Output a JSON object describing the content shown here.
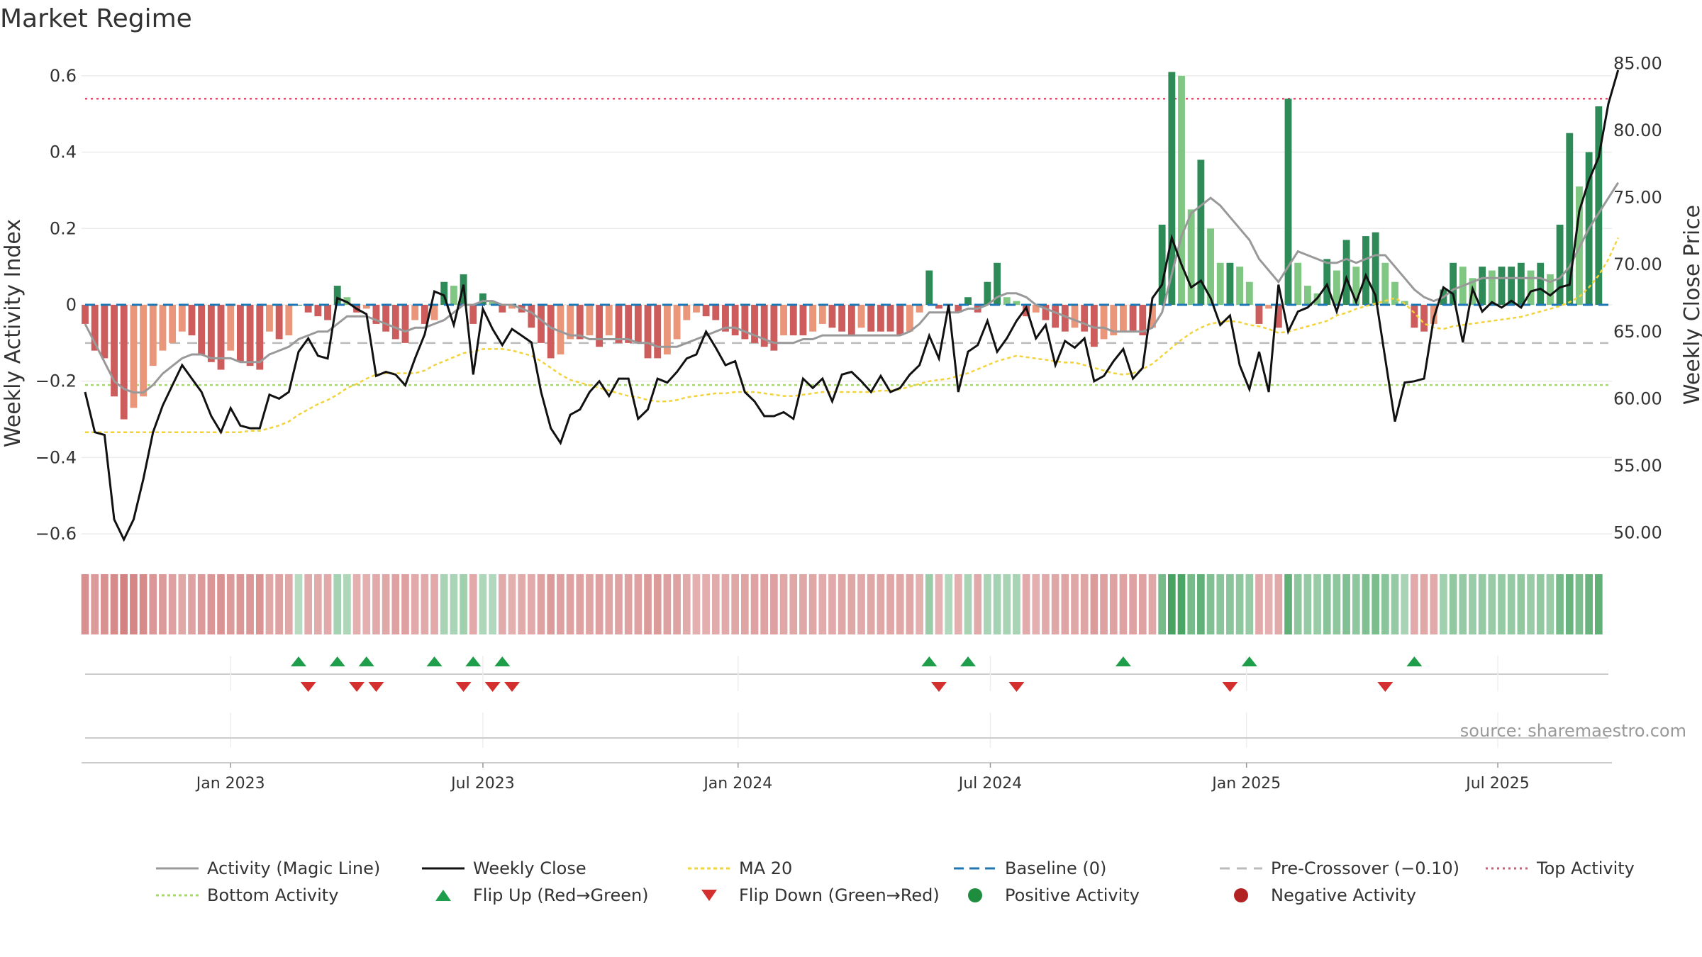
{
  "colors": {
    "pos_dark": "#2e8b57",
    "pos_light": "#81c784",
    "neg_dark": "#cd5c5c",
    "neg_light": "#e9967a",
    "magic": "#999999",
    "close": "#111111",
    "ma20": "#f2d33c",
    "baseline": "#1f77b4",
    "precross": "#bbbbbb",
    "top": "#e05070",
    "bottom": "#a6d96a",
    "flip_up": "#1e9e4a",
    "flip_down": "#d32f2f",
    "positive": "#1e8e3e",
    "negative": "#b22222"
  },
  "chart_data": {
    "type": "bar",
    "title": "Market Regime",
    "ylabel_left": "Weekly Activity Index",
    "ylabel_right": "Weekly Close Price",
    "ylim_left": [
      -0.65,
      0.65
    ],
    "ylim_right": [
      48.5,
      85.5
    ],
    "yticks_left": [
      "−0.6",
      "−0.4",
      "−0.2",
      "0",
      "0.2",
      "0.4",
      "0.6"
    ],
    "yticks_right": [
      "50.00",
      "55.00",
      "60.00",
      "65.00",
      "70.00",
      "75.00",
      "80.00",
      "85.00"
    ],
    "yticks_right_values": [
      50,
      55,
      60,
      65,
      70,
      75,
      80,
      85
    ],
    "x_start_week": 0,
    "x_end_week": 157,
    "xticks": [
      {
        "label": "Jan 2023",
        "week": 15
      },
      {
        "label": "Jul 2023",
        "week": 41
      },
      {
        "label": "Jan 2024",
        "week": 67.3
      },
      {
        "label": "Jul 2024",
        "week": 93.3
      },
      {
        "label": "Jan 2025",
        "week": 119.7
      },
      {
        "label": "Jul 2025",
        "week": 145.6
      }
    ],
    "top_activity": 0.54,
    "bottom_activity": -0.21,
    "pre_crossover": -0.1,
    "baseline": 0,
    "activity": [
      -0.05,
      -0.12,
      -0.14,
      -0.24,
      -0.3,
      -0.27,
      -0.24,
      -0.16,
      -0.12,
      -0.1,
      -0.07,
      -0.08,
      -0.13,
      -0.15,
      -0.17,
      -0.12,
      -0.15,
      -0.16,
      -0.17,
      -0.07,
      -0.09,
      -0.08,
      0,
      -0.02,
      -0.03,
      -0.04,
      0.05,
      0.02,
      -0.02,
      -0.01,
      -0.05,
      -0.07,
      -0.09,
      -0.1,
      -0.04,
      -0.05,
      -0.04,
      0.06,
      0.05,
      0.08,
      -0.05,
      0.03,
      0.01,
      -0.02,
      -0.01,
      -0.02,
      -0.06,
      -0.1,
      -0.14,
      -0.13,
      -0.09,
      -0.09,
      -0.08,
      -0.11,
      -0.08,
      -0.1,
      -0.1,
      -0.1,
      -0.14,
      -0.14,
      -0.13,
      -0.09,
      -0.04,
      -0.02,
      -0.03,
      -0.04,
      -0.07,
      -0.08,
      -0.09,
      -0.1,
      -0.11,
      -0.12,
      -0.08,
      -0.08,
      -0.08,
      -0.07,
      -0.05,
      -0.06,
      -0.07,
      -0.08,
      -0.06,
      -0.07,
      -0.07,
      -0.07,
      -0.08,
      -0.07,
      -0.02,
      0.09,
      -0.01,
      0,
      -0.02,
      0.02,
      -0.02,
      0.06,
      0.11,
      0.02,
      0.01,
      -0.03,
      -0.02,
      -0.04,
      -0.06,
      -0.07,
      -0.06,
      -0.07,
      -0.11,
      -0.09,
      -0.08,
      -0.07,
      -0.07,
      -0.08,
      -0.06,
      0.21,
      0.61,
      0.6,
      0.25,
      0.38,
      0.2,
      0.11,
      0.11,
      0.1,
      0.06,
      -0.05,
      -0.01,
      -0.06,
      0.54,
      0.11,
      0.05,
      0.03,
      0.12,
      0.09,
      0.17,
      0.1,
      0.18,
      0.19,
      0.11,
      0.06,
      0.01,
      -0.06,
      -0.07,
      -0.05,
      0.04,
      0.11,
      0.1,
      0.07,
      0.1,
      0.09,
      0.1,
      0.1,
      0.11,
      0.09,
      0.11,
      0.08,
      0.21,
      0.45,
      0.31,
      0.4,
      0.52
    ],
    "magic_line": [
      -0.05,
      -0.1,
      -0.15,
      -0.2,
      -0.22,
      -0.23,
      -0.23,
      -0.21,
      -0.18,
      -0.16,
      -0.14,
      -0.13,
      -0.13,
      -0.14,
      -0.14,
      -0.14,
      -0.15,
      -0.15,
      -0.15,
      -0.13,
      -0.12,
      -0.11,
      -0.09,
      -0.08,
      -0.07,
      -0.07,
      -0.05,
      -0.03,
      -0.03,
      -0.03,
      -0.04,
      -0.05,
      -0.06,
      -0.07,
      -0.06,
      -0.06,
      -0.05,
      -0.04,
      -0.02,
      0,
      0,
      0.01,
      0.01,
      0,
      0,
      -0.01,
      -0.02,
      -0.04,
      -0.06,
      -0.07,
      -0.08,
      -0.08,
      -0.09,
      -0.09,
      -0.09,
      -0.09,
      -0.09,
      -0.1,
      -0.1,
      -0.11,
      -0.11,
      -0.11,
      -0.1,
      -0.09,
      -0.08,
      -0.07,
      -0.06,
      -0.06,
      -0.07,
      -0.08,
      -0.09,
      -0.1,
      -0.1,
      -0.1,
      -0.09,
      -0.09,
      -0.08,
      -0.08,
      -0.08,
      -0.08,
      -0.08,
      -0.08,
      -0.08,
      -0.08,
      -0.08,
      -0.07,
      -0.05,
      -0.02,
      -0.02,
      -0.02,
      -0.02,
      -0.01,
      -0.01,
      0,
      0.02,
      0.03,
      0.03,
      0.02,
      0,
      -0.01,
      -0.02,
      -0.03,
      -0.04,
      -0.05,
      -0.06,
      -0.06,
      -0.07,
      -0.07,
      -0.07,
      -0.07,
      -0.06,
      -0.02,
      0.08,
      0.18,
      0.24,
      0.26,
      0.28,
      0.26,
      0.23,
      0.2,
      0.17,
      0.12,
      0.09,
      0.06,
      0.1,
      0.14,
      0.13,
      0.12,
      0.11,
      0.11,
      0.12,
      0.11,
      0.12,
      0.13,
      0.13,
      0.1,
      0.07,
      0.04,
      0.02,
      0.01,
      0.02,
      0.04,
      0.05,
      0.06,
      0.07,
      0.07,
      0.07,
      0.07,
      0.07,
      0.07,
      0.07,
      0.06,
      0.07,
      0.1,
      0.15,
      0.2,
      0.24,
      0.28,
      0.32
    ],
    "weekly_close": [
      60.5,
      57.5,
      57.3,
      51,
      49.5,
      51,
      54,
      57.5,
      59.5,
      61,
      62.5,
      61.5,
      60.5,
      58.7,
      57.5,
      59.3,
      58,
      57.8,
      57.8,
      60.3,
      60,
      60.5,
      63.5,
      64.5,
      63.2,
      63,
      67.5,
      67.2,
      66.7,
      66.3,
      61.7,
      62,
      61.8,
      61,
      63,
      64.8,
      68,
      67.7,
      65.5,
      68.5,
      61.8,
      66.7,
      65.2,
      64,
      65.2,
      64.7,
      64.2,
      60.5,
      57.8,
      56.7,
      58.8,
      59.2,
      60.5,
      61.3,
      60.2,
      61.5,
      61.5,
      58.5,
      59.2,
      61.5,
      61.2,
      62,
      63,
      63.3,
      65,
      63.8,
      62.5,
      62.8,
      60.5,
      59.8,
      58.7,
      58.7,
      59,
      58.5,
      61.5,
      60.8,
      61.5,
      59.8,
      61.8,
      62,
      61.3,
      60.5,
      61.7,
      60.5,
      60.8,
      61.8,
      62.5,
      64.7,
      63,
      67,
      60.5,
      63.5,
      64,
      65.8,
      63.5,
      64.5,
      65.8,
      66.8,
      64.5,
      65.5,
      62.5,
      64.3,
      63.8,
      64.5,
      61.3,
      61.7,
      62.8,
      63.7,
      61.5,
      62.3,
      67.5,
      68.5,
      72,
      70,
      68.3,
      68.8,
      67.5,
      65.5,
      66.2,
      62.5,
      60.7,
      63.5,
      60.5,
      68.5,
      65,
      66.5,
      66.8,
      67.5,
      68.5,
      66.5,
      69,
      67.2,
      69.2,
      67.7,
      63,
      58.3,
      61.2,
      61.3,
      61.5,
      66,
      68.3,
      67.8,
      64.2,
      68.2,
      66.5,
      67.2,
      66.8,
      67.3,
      66.8,
      68,
      68.2,
      67.7,
      68.3,
      68.5,
      74,
      76.3,
      78,
      82,
      84.5
    ],
    "ma20": [
      57.5,
      57.5,
      57.5,
      57.5,
      57.5,
      57.5,
      57.5,
      57.5,
      57.5,
      57.5,
      57.5,
      57.5,
      57.5,
      57.5,
      57.5,
      57.5,
      57.5,
      57.6,
      57.6,
      57.8,
      58,
      58.3,
      58.8,
      59.2,
      59.6,
      59.9,
      60.3,
      60.8,
      61.1,
      61.5,
      61.8,
      61.9,
      61.9,
      61.9,
      61.9,
      62.1,
      62.5,
      62.8,
      63.1,
      63.4,
      63.5,
      63.7,
      63.7,
      63.7,
      63.6,
      63.4,
      63.2,
      62.8,
      62.3,
      61.8,
      61.4,
      61.2,
      61,
      60.8,
      60.6,
      60.4,
      60.2,
      60.1,
      59.9,
      59.8,
      59.8,
      59.9,
      60.1,
      60.2,
      60.3,
      60.4,
      60.4,
      60.5,
      60.5,
      60.5,
      60.4,
      60.3,
      60.2,
      60.2,
      60.3,
      60.4,
      60.5,
      60.5,
      60.5,
      60.5,
      60.5,
      60.5,
      60.6,
      60.6,
      60.7,
      60.9,
      61.1,
      61.3,
      61.4,
      61.5,
      61.7,
      61.9,
      62.2,
      62.5,
      62.8,
      63,
      63.2,
      63.1,
      63,
      62.9,
      62.8,
      62.7,
      62.7,
      62.5,
      62.3,
      62.1,
      61.9,
      61.8,
      61.9,
      62.2,
      62.6,
      63.2,
      63.8,
      64.4,
      64.9,
      65.3,
      65.6,
      65.7,
      65.8,
      65.7,
      65.5,
      65.4,
      65.2,
      64.9,
      65,
      65.2,
      65.4,
      65.6,
      65.8,
      66.2,
      66.4,
      66.7,
      66.9,
      67.1,
      67.3,
      67.5,
      67.1,
      66.4,
      65.6,
      65.3,
      65.2,
      65.4,
      65.5,
      65.6,
      65.7,
      65.8,
      65.9,
      66,
      66.1,
      66.3,
      66.5,
      66.7,
      66.9,
      67.2,
      67.6,
      68.3,
      69.2,
      70.4,
      72
    ],
    "regime_intensity": [
      0.46,
      0.4,
      0.46,
      0.5,
      0.56,
      0.52,
      0.5,
      0.42,
      0.4,
      0.36,
      0.32,
      0.34,
      0.4,
      0.42,
      0.44,
      0.38,
      0.42,
      0.42,
      0.44,
      0.32,
      0.34,
      0.32,
      0.2,
      0.28,
      0.28,
      0.3,
      0.32,
      0.26,
      0.26,
      0.26,
      0.3,
      0.32,
      0.34,
      0.36,
      0.3,
      0.3,
      0.3,
      0.3,
      0.28,
      0.34,
      0.3,
      0.26,
      0.24,
      0.28,
      0.26,
      0.28,
      0.3,
      0.34,
      0.38,
      0.36,
      0.34,
      0.34,
      0.33,
      0.36,
      0.33,
      0.34,
      0.34,
      0.34,
      0.38,
      0.38,
      0.36,
      0.34,
      0.28,
      0.26,
      0.27,
      0.28,
      0.3,
      0.32,
      0.33,
      0.34,
      0.35,
      0.36,
      0.32,
      0.32,
      0.32,
      0.31,
      0.29,
      0.3,
      0.31,
      0.32,
      0.3,
      0.31,
      0.31,
      0.31,
      0.32,
      0.31,
      0.26,
      0.38,
      0.24,
      0.24,
      0.26,
      0.3,
      0.3,
      0.28,
      0.32,
      0.3,
      0.3,
      0.28,
      0.26,
      0.3,
      0.32,
      0.33,
      0.32,
      0.33,
      0.38,
      0.36,
      0.35,
      0.34,
      0.34,
      0.35,
      0.32,
      0.6,
      0.9,
      0.88,
      0.6,
      0.75,
      0.55,
      0.48,
      0.48,
      0.46,
      0.42,
      0.3,
      0.26,
      0.3,
      0.75,
      0.46,
      0.42,
      0.4,
      0.5,
      0.46,
      0.55,
      0.46,
      0.56,
      0.58,
      0.48,
      0.42,
      0.3,
      0.3,
      0.32,
      0.3,
      0.34,
      0.44,
      0.42,
      0.38,
      0.42,
      0.4,
      0.42,
      0.42,
      0.44,
      0.4,
      0.44,
      0.4,
      0.6,
      0.7,
      0.58,
      0.7,
      0.75
    ],
    "flip_up_weeks": [
      22,
      26,
      29,
      36,
      40,
      43,
      87,
      91,
      107,
      120,
      137
    ],
    "flip_down_weeks": [
      23,
      28,
      30,
      39,
      42,
      44,
      88,
      96,
      118,
      134
    ],
    "source": "source: sharemaestro.com",
    "legend": [
      "Activity (Magic Line)",
      "Weekly Close",
      "MA 20",
      "Baseline (0)",
      "Pre-Crossover (−0.10)",
      "Top Activity",
      "Bottom Activity",
      "Flip Up (Red→Green)",
      "Flip Down (Green→Red)",
      "Positive Activity",
      "Negative Activity"
    ]
  }
}
